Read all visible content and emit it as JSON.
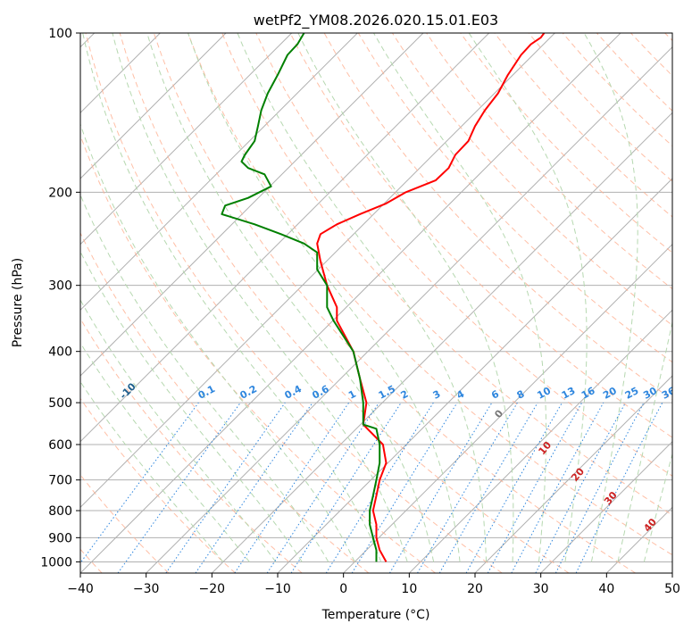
{
  "chart_data": {
    "type": "line",
    "title": "wetPf2_YM08.2026.020.15.01.E03",
    "xlabel": "Temperature (°C)",
    "ylabel": "Pressure (hPa)",
    "xlim": [
      -40,
      50
    ],
    "ylim": [
      1050,
      100
    ],
    "yscale": "log",
    "grid": true,
    "x_ticks": [
      -40,
      -30,
      -20,
      -10,
      0,
      10,
      20,
      30,
      40,
      50
    ],
    "y_ticks": [
      100,
      200,
      300,
      400,
      500,
      600,
      700,
      800,
      900,
      1000
    ],
    "series": [
      {
        "color": "#ff0000",
        "points": [
          [
            6.5,
            1000
          ],
          [
            5.5,
            950
          ],
          [
            5.0,
            900
          ],
          [
            5.0,
            850
          ],
          [
            4.5,
            800
          ],
          [
            5.0,
            750
          ],
          [
            5.5,
            700
          ],
          [
            6.5,
            650
          ],
          [
            6.0,
            600
          ],
          [
            3.0,
            550
          ],
          [
            3.5,
            500
          ],
          [
            2.5,
            450
          ],
          [
            1.5,
            400
          ],
          [
            -1.0,
            350
          ],
          [
            -1.0,
            330
          ],
          [
            -2.5,
            300
          ],
          [
            -3.5,
            270
          ],
          [
            -4.0,
            250
          ],
          [
            -3.5,
            240
          ],
          [
            -1.0,
            230
          ],
          [
            2.5,
            220
          ],
          [
            6.5,
            210
          ],
          [
            9.5,
            200
          ],
          [
            14.0,
            190
          ],
          [
            16.0,
            180
          ],
          [
            17.0,
            170
          ],
          [
            19.0,
            160
          ],
          [
            20.0,
            150
          ],
          [
            21.5,
            140
          ],
          [
            23.5,
            130
          ],
          [
            25.0,
            120
          ],
          [
            27.0,
            110
          ],
          [
            28.5,
            105
          ],
          [
            30.0,
            102
          ],
          [
            30.5,
            100
          ]
        ]
      },
      {
        "color": "#008000",
        "points": [
          [
            5.0,
            1000
          ],
          [
            5.0,
            950
          ],
          [
            4.5,
            900
          ],
          [
            4.0,
            850
          ],
          [
            4.0,
            800
          ],
          [
            4.5,
            750
          ],
          [
            5.0,
            700
          ],
          [
            5.5,
            650
          ],
          [
            5.5,
            600
          ],
          [
            5.0,
            560
          ],
          [
            3.0,
            550
          ],
          [
            3.0,
            500
          ],
          [
            2.5,
            450
          ],
          [
            1.5,
            400
          ],
          [
            -1.5,
            350
          ],
          [
            -2.5,
            330
          ],
          [
            -2.5,
            300
          ],
          [
            -4.0,
            280
          ],
          [
            -4.0,
            260
          ],
          [
            -6.0,
            250
          ],
          [
            -9.5,
            240
          ],
          [
            -13.5,
            230
          ],
          [
            -18.5,
            220
          ],
          [
            -18.0,
            212
          ],
          [
            -14.5,
            205
          ],
          [
            -11.0,
            195
          ],
          [
            -12.0,
            185
          ],
          [
            -14.5,
            180
          ],
          [
            -15.5,
            175
          ],
          [
            -15.0,
            170
          ],
          [
            -13.5,
            160
          ],
          [
            -13.0,
            150
          ],
          [
            -12.5,
            140
          ],
          [
            -11.5,
            130
          ],
          [
            -10.0,
            120
          ],
          [
            -8.5,
            110
          ],
          [
            -7.0,
            105
          ],
          [
            -6.0,
            100
          ]
        ]
      }
    ],
    "dry_adiabats_C": [
      -100,
      -90,
      -80,
      -70,
      -60,
      -50,
      -40,
      -30,
      -20,
      -10,
      0,
      10,
      20,
      30,
      40
    ],
    "moist_adiabat_labels_C": [
      0,
      10,
      20,
      30,
      40
    ],
    "mixing_ratio_labels_gkg": [
      "0.1",
      "0.2",
      "0.4",
      "0.6",
      "1",
      "1.5",
      "2",
      "3",
      "4",
      "6",
      "8",
      "10",
      "13",
      "16",
      "20",
      "25",
      "30",
      "36"
    ],
    "colors": {
      "isotherm": "#b0b0b0",
      "isobar": "#b0b0b0",
      "dry_adiabat": "#ffaf90",
      "moist_adiabat": "#b6d8b0",
      "mixing_ratio": "#2e86de",
      "dry_label": "#1f5f8e",
      "moist_label": "#cc2222"
    }
  }
}
